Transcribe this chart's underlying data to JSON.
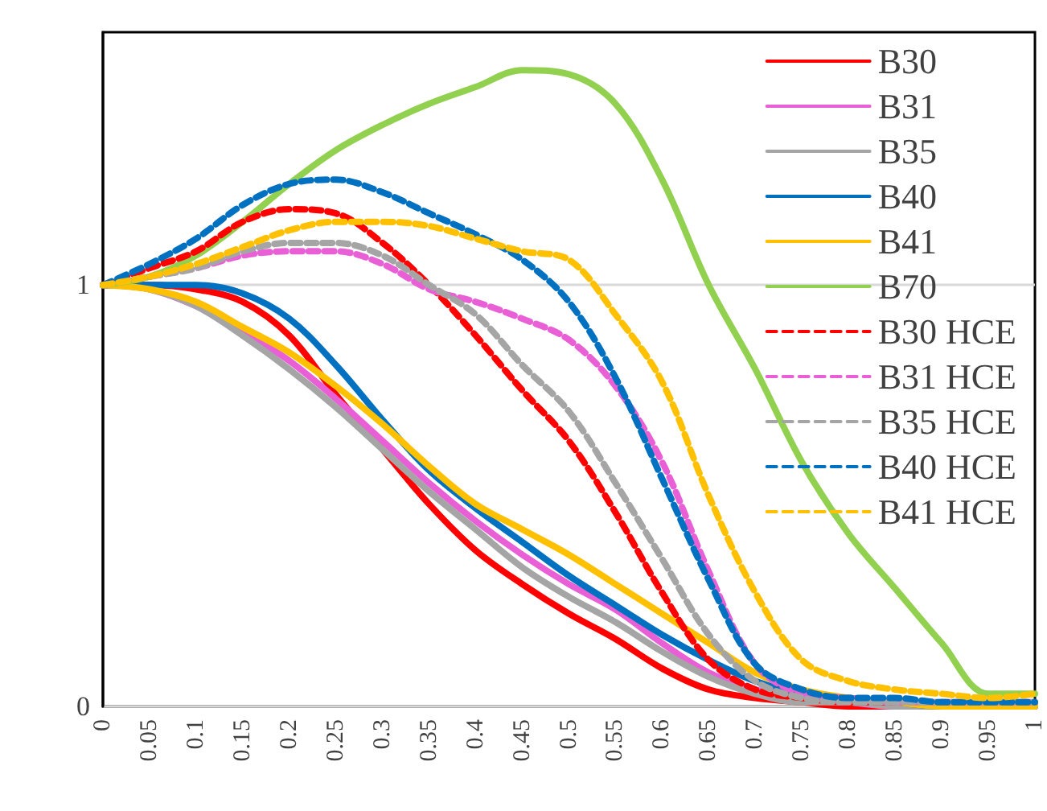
{
  "chart_data": {
    "type": "line",
    "x": [
      0,
      0.05,
      0.1,
      0.15,
      0.2,
      0.25,
      0.3,
      0.35,
      0.4,
      0.45,
      0.5,
      0.55,
      0.6,
      0.65,
      0.7,
      0.75,
      0.8,
      0.85,
      0.9,
      0.95,
      1
    ],
    "xlim": [
      0,
      1
    ],
    "xticks": [
      0,
      0.05,
      0.1,
      0.15,
      0.2,
      0.25,
      0.3,
      0.35,
      0.4,
      0.45,
      0.5,
      0.55,
      0.6,
      0.65,
      0.7,
      0.75,
      0.8,
      0.85,
      0.9,
      0.95,
      1
    ],
    "ylim": [
      0,
      1.6
    ],
    "yticks": [
      0,
      1
    ],
    "grid": "y",
    "legend": "top right",
    "marker": "none",
    "series": [
      {
        "name": "B30",
        "color": "#ff0000",
        "line_style": "solid",
        "values": [
          1,
          1.0,
          0.99,
          0.96,
          0.88,
          0.74,
          0.61,
          0.48,
          0.37,
          0.29,
          0.22,
          0.16,
          0.09,
          0.04,
          0.02,
          0.01,
          0,
          0,
          0,
          null,
          null
        ]
      },
      {
        "name": "B31",
        "color": "#e85fd6",
        "line_style": "solid",
        "values": [
          1,
          0.99,
          0.95,
          0.89,
          0.82,
          0.73,
          0.63,
          0.53,
          0.44,
          0.36,
          0.29,
          0.23,
          0.15,
          0.08,
          0.04,
          0.02,
          0.01,
          0,
          0,
          0,
          0
        ]
      },
      {
        "name": "B35",
        "color": "#a5a5a5",
        "line_style": "solid",
        "values": [
          1,
          0.99,
          0.95,
          0.88,
          0.8,
          0.71,
          0.61,
          0.51,
          0.42,
          0.33,
          0.26,
          0.2,
          0.13,
          0.07,
          0.03,
          0.01,
          0.01,
          0,
          0,
          0,
          0
        ]
      },
      {
        "name": "B40",
        "color": "#0070c0",
        "line_style": "solid",
        "values": [
          1,
          1.0,
          1.0,
          0.98,
          0.92,
          0.81,
          0.68,
          0.56,
          0.47,
          0.39,
          0.31,
          0.24,
          0.17,
          0.11,
          0.06,
          0.03,
          0.02,
          0.01,
          0,
          0,
          0
        ]
      },
      {
        "name": "B41",
        "color": "#ffc000",
        "line_style": "solid",
        "values": [
          1,
          0.99,
          0.96,
          0.9,
          0.84,
          0.76,
          0.67,
          0.57,
          0.48,
          0.42,
          0.36,
          0.29,
          0.22,
          0.15,
          0.08,
          0.04,
          0.02,
          0.01,
          0,
          0,
          0
        ]
      },
      {
        "name": "B70",
        "color": "#92d050",
        "line_style": "solid",
        "values": [
          1,
          1.02,
          1.07,
          1.15,
          1.24,
          1.32,
          1.38,
          1.43,
          1.47,
          1.51,
          1.5,
          1.43,
          1.25,
          1.0,
          0.8,
          0.58,
          0.41,
          0.28,
          0.15,
          0.03,
          0.03
        ]
      },
      {
        "name": "B30 HCE",
        "color": "#ff0000",
        "line_style": "dashed",
        "values": [
          1,
          1.04,
          1.08,
          1.15,
          1.18,
          1.17,
          1.1,
          1.0,
          0.88,
          0.75,
          0.63,
          0.46,
          0.27,
          0.11,
          0.04,
          0.02,
          0.01,
          0.01,
          null,
          null,
          null
        ]
      },
      {
        "name": "B31 HCE",
        "color": "#e85fd6",
        "line_style": "dashed",
        "values": [
          1,
          1.02,
          1.04,
          1.07,
          1.08,
          1.08,
          1.05,
          0.99,
          0.96,
          0.92,
          0.87,
          0.76,
          0.58,
          0.32,
          0.1,
          0.03,
          0.02,
          0.01,
          0.01,
          0.01,
          0.01
        ]
      },
      {
        "name": "B35 HCE",
        "color": "#a5a5a5",
        "line_style": "dashed",
        "values": [
          1,
          1.02,
          1.04,
          1.08,
          1.1,
          1.1,
          1.07,
          1.0,
          0.93,
          0.81,
          0.7,
          0.53,
          0.35,
          0.17,
          0.06,
          0.02,
          0.01,
          0.01,
          0.01,
          0.01,
          0.01
        ]
      },
      {
        "name": "B40 HCE",
        "color": "#0070c0",
        "line_style": "dashed",
        "values": [
          1,
          1.05,
          1.11,
          1.19,
          1.24,
          1.25,
          1.22,
          1.17,
          1.12,
          1.06,
          0.96,
          0.78,
          0.54,
          0.3,
          0.1,
          0.04,
          0.02,
          0.02,
          0.01,
          0.01,
          0.01
        ]
      },
      {
        "name": "B41 HCE",
        "color": "#ffc000",
        "line_style": "dashed",
        "values": [
          1,
          1.02,
          1.05,
          1.09,
          1.13,
          1.15,
          1.15,
          1.14,
          1.11,
          1.08,
          1.06,
          0.93,
          0.77,
          0.5,
          0.27,
          0.11,
          0.06,
          0.04,
          0.03,
          0.02,
          0.03
        ]
      }
    ]
  }
}
